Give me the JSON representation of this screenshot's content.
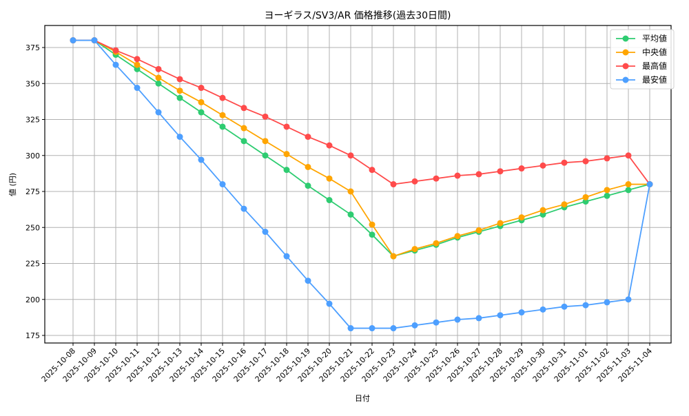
{
  "chart_data": {
    "type": "line",
    "title": "ヨーギラス/SV3/AR 価格推移(過去30日間)",
    "xlabel": "日付",
    "ylabel": "値 (円)",
    "ylim": [
      170,
      390
    ],
    "yticks": [
      175,
      200,
      225,
      250,
      275,
      300,
      325,
      350,
      375
    ],
    "grid": true,
    "legend_position": "upper right",
    "categories": [
      "2025-10-08",
      "2025-10-09",
      "2025-10-10",
      "2025-10-11",
      "2025-10-12",
      "2025-10-13",
      "2025-10-14",
      "2025-10-15",
      "2025-10-16",
      "2025-10-17",
      "2025-10-18",
      "2025-10-19",
      "2025-10-20",
      "2025-10-21",
      "2025-10-22",
      "2025-10-23",
      "2025-10-24",
      "2025-10-25",
      "2025-10-26",
      "2025-10-27",
      "2025-10-28",
      "2025-10-29",
      "2025-10-30",
      "2025-10-31",
      "2025-11-01",
      "2025-11-02",
      "2025-11-03",
      "2025-11-04"
    ],
    "series": [
      {
        "name": "平均値",
        "color": "#2ecc71",
        "values": [
          380,
          380,
          370,
          360,
          350,
          340,
          330,
          320,
          310,
          300,
          290,
          279,
          269,
          259,
          245,
          230,
          234,
          238,
          243,
          247,
          251,
          255,
          259,
          264,
          268,
          272,
          276,
          280
        ]
      },
      {
        "name": "中央値",
        "color": "#ffa500",
        "values": [
          380,
          380,
          372,
          363,
          354,
          345,
          337,
          328,
          319,
          310,
          301,
          292,
          284,
          275,
          252,
          230,
          235,
          239,
          244,
          248,
          253,
          257,
          262,
          266,
          271,
          276,
          280,
          280
        ]
      },
      {
        "name": "最高値",
        "color": "#ff4b4b",
        "values": [
          380,
          380,
          373,
          367,
          360,
          353,
          347,
          340,
          333,
          327,
          320,
          313,
          307,
          300,
          290,
          280,
          282,
          284,
          286,
          287,
          289,
          291,
          293,
          295,
          296,
          298,
          300,
          280
        ]
      },
      {
        "name": "最安値",
        "color": "#4d9fff",
        "values": [
          380,
          380,
          363,
          347,
          330,
          313,
          297,
          280,
          263,
          247,
          230,
          213,
          197,
          180,
          180,
          180,
          182,
          184,
          186,
          187,
          189,
          191,
          193,
          195,
          196,
          198,
          200,
          280
        ]
      }
    ]
  }
}
